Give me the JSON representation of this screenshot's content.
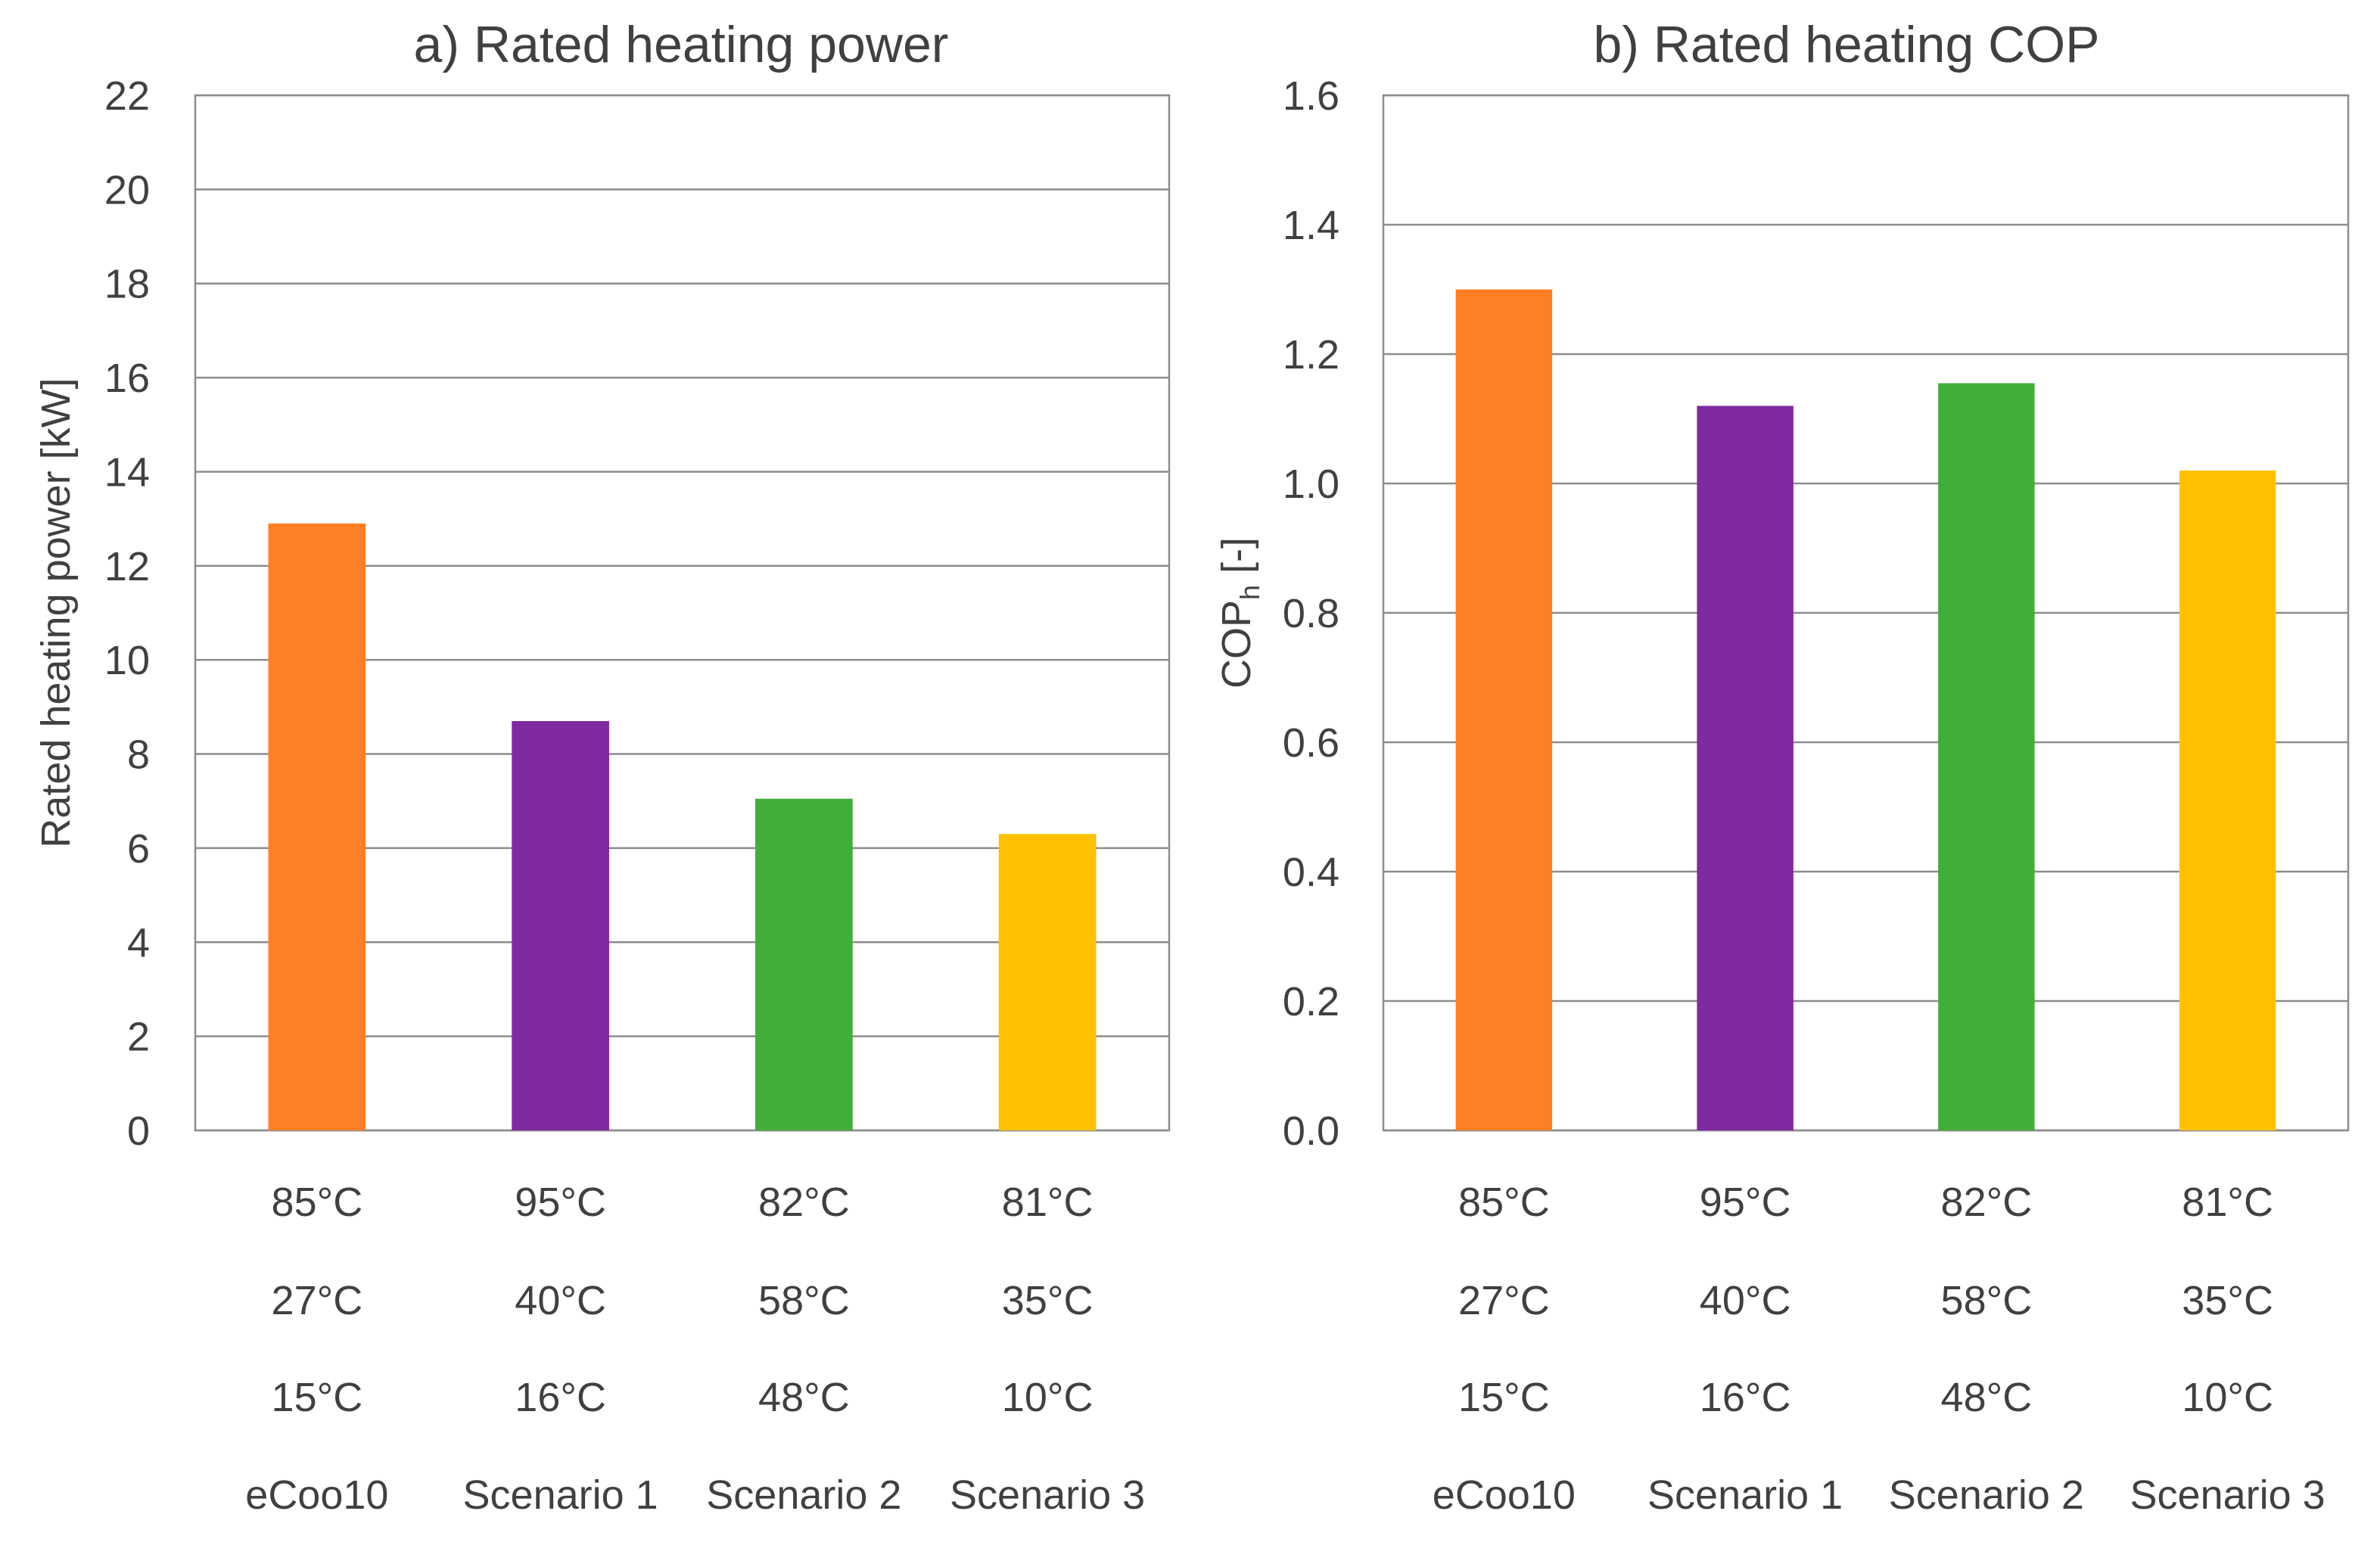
{
  "chart_data": [
    {
      "type": "bar",
      "title": "a) Rated heating power",
      "ylabel": "Rated heating power [kW]",
      "ylim": [
        0,
        22
      ],
      "yticks": [
        0,
        2,
        4,
        6,
        8,
        10,
        12,
        14,
        16,
        18,
        20,
        22
      ],
      "grid": true,
      "categories": [
        "eCoo10",
        "Scenario 1",
        "Scenario 2",
        "Scenario 3"
      ],
      "category_sublabels": [
        [
          "85°C",
          "27°C",
          "15°C"
        ],
        [
          "95°C",
          "40°C",
          "16°C"
        ],
        [
          "82°C",
          "58°C",
          "48°C"
        ],
        [
          "81°C",
          "35°C",
          "10°C"
        ]
      ],
      "values": [
        12.9,
        8.7,
        7.05,
        6.3
      ],
      "colors": [
        "#FF7F27",
        "#7F2AA0",
        "#43AD3A",
        "#FFC000"
      ]
    },
    {
      "type": "bar",
      "title": "b) Rated heating COP",
      "ylabel": "COP",
      "ylabel_sub": "h",
      "ylabel_suffix": " [-]",
      "ylim": [
        0,
        1.6
      ],
      "yticks": [
        "0.0",
        "0.2",
        "0.4",
        "0.6",
        "0.8",
        "1.0",
        "1.2",
        "1.4",
        "1.6"
      ],
      "grid": true,
      "categories": [
        "eCoo10",
        "Scenario 1",
        "Scenario 2",
        "Scenario 3"
      ],
      "category_sublabels": [
        [
          "85°C",
          "27°C",
          "15°C"
        ],
        [
          "95°C",
          "40°C",
          "16°C"
        ],
        [
          "82°C",
          "58°C",
          "48°C"
        ],
        [
          "81°C",
          "35°C",
          "10°C"
        ]
      ],
      "values": [
        1.3,
        1.12,
        1.155,
        1.02
      ],
      "colors": [
        "#FF7F27",
        "#7F2AA0",
        "#43AD3A",
        "#FFC000"
      ]
    }
  ]
}
